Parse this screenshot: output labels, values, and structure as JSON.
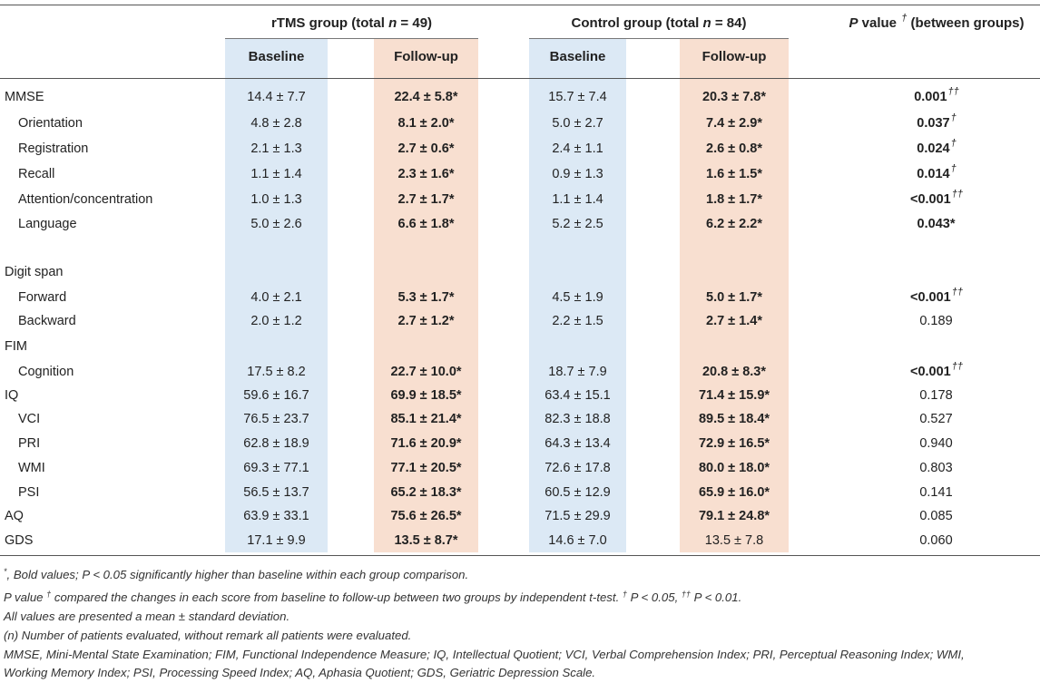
{
  "header": {
    "rtms_group_prefix": "rTMS group (total ",
    "rtms_group_n": "n",
    "rtms_group_suffix": " = 49)",
    "control_group_prefix": "Control group (total ",
    "control_group_n": "n",
    "control_group_suffix": " = 84)",
    "pvalue_p": "P",
    "pvalue_word": " value ",
    "pvalue_dagger": "†",
    "pvalue_suffix": " (between groups)",
    "baseline_label": "Baseline",
    "followup_label": "Follow-up"
  },
  "rows": [
    {
      "label": "MMSE",
      "indent": false,
      "rtms_base": "14.4 ± 7.7",
      "rtms_fu": "22.4 ± 5.8*",
      "rtms_fu_bold": true,
      "ctrl_base": "15.7 ± 7.4",
      "ctrl_fu": "20.3 ± 7.8*",
      "ctrl_fu_bold": true,
      "p": "0.001",
      "p_bold": true,
      "p_sup": "††"
    },
    {
      "label": "Orientation",
      "indent": true,
      "rtms_base": "4.8 ± 2.8",
      "rtms_fu": "8.1 ± 2.0*",
      "rtms_fu_bold": true,
      "ctrl_base": "5.0 ± 2.7",
      "ctrl_fu": "7.4 ± 2.9*",
      "ctrl_fu_bold": true,
      "p": "0.037",
      "p_bold": true,
      "p_sup": "†"
    },
    {
      "label": "Registration",
      "indent": true,
      "rtms_base": "2.1 ± 1.3",
      "rtms_fu": "2.7 ± 0.6*",
      "rtms_fu_bold": true,
      "ctrl_base": "2.4 ± 1.1",
      "ctrl_fu": "2.6 ± 0.8*",
      "ctrl_fu_bold": true,
      "p": "0.024",
      "p_bold": true,
      "p_sup": "†"
    },
    {
      "label": "Recall",
      "indent": true,
      "rtms_base": "1.1 ± 1.4",
      "rtms_fu": "2.3 ± 1.6*",
      "rtms_fu_bold": true,
      "ctrl_base": "0.9 ± 1.3",
      "ctrl_fu": "1.6 ± 1.5*",
      "ctrl_fu_bold": true,
      "p": "0.014",
      "p_bold": true,
      "p_sup": "†"
    },
    {
      "label": "Attention/concentration",
      "indent": true,
      "rtms_base": "1.0 ± 1.3",
      "rtms_fu": "2.7 ± 1.7*",
      "rtms_fu_bold": true,
      "ctrl_base": "1.1 ± 1.4",
      "ctrl_fu": "1.8 ± 1.7*",
      "ctrl_fu_bold": true,
      "p": "<0.001",
      "p_bold": true,
      "p_sup": "††"
    },
    {
      "label": "Language",
      "indent": true,
      "rtms_base": "5.0 ± 2.6",
      "rtms_fu": "6.6 ± 1.8*",
      "rtms_fu_bold": true,
      "ctrl_base": "5.2 ± 2.5",
      "ctrl_fu": "6.2 ± 2.2*",
      "ctrl_fu_bold": true,
      "p": "0.043*",
      "p_bold": true,
      "p_sup": ""
    },
    {
      "label": "Digit span",
      "indent": false,
      "rtms_base": "",
      "rtms_fu": "",
      "rtms_fu_bold": false,
      "ctrl_base": "",
      "ctrl_fu": "",
      "ctrl_fu_bold": false,
      "p": "",
      "p_bold": false,
      "p_sup": ""
    },
    {
      "label": "Forward",
      "indent": true,
      "rtms_base": "4.0 ± 2.1",
      "rtms_fu": "5.3 ± 1.7*",
      "rtms_fu_bold": true,
      "ctrl_base": "4.5 ± 1.9",
      "ctrl_fu": "5.0 ± 1.7*",
      "ctrl_fu_bold": true,
      "p": "<0.001",
      "p_bold": true,
      "p_sup": "††"
    },
    {
      "label": "Backward",
      "indent": true,
      "rtms_base": "2.0 ± 1.2",
      "rtms_fu": "2.7 ± 1.2*",
      "rtms_fu_bold": true,
      "ctrl_base": "2.2 ± 1.5",
      "ctrl_fu": "2.7 ± 1.4*",
      "ctrl_fu_bold": true,
      "p": "0.189",
      "p_bold": false,
      "p_sup": ""
    },
    {
      "label": "FIM",
      "indent": false,
      "rtms_base": "",
      "rtms_fu": "",
      "rtms_fu_bold": false,
      "ctrl_base": "",
      "ctrl_fu": "",
      "ctrl_fu_bold": false,
      "p": "",
      "p_bold": false,
      "p_sup": ""
    },
    {
      "label": "Cognition",
      "indent": true,
      "rtms_base": "17.5 ± 8.2",
      "rtms_fu": "22.7 ± 10.0*",
      "rtms_fu_bold": true,
      "ctrl_base": "18.7 ± 7.9",
      "ctrl_fu": "20.8 ± 8.3*",
      "ctrl_fu_bold": true,
      "p": "<0.001",
      "p_bold": true,
      "p_sup": "††"
    },
    {
      "label": "IQ",
      "indent": false,
      "rtms_base": "59.6 ± 16.7",
      "rtms_fu": "69.9 ± 18.5*",
      "rtms_fu_bold": true,
      "ctrl_base": "63.4 ± 15.1",
      "ctrl_fu": "71.4 ± 15.9*",
      "ctrl_fu_bold": true,
      "p": "0.178",
      "p_bold": false,
      "p_sup": ""
    },
    {
      "label": "VCI",
      "indent": true,
      "rtms_base": "76.5 ± 23.7",
      "rtms_fu": "85.1 ± 21.4*",
      "rtms_fu_bold": true,
      "ctrl_base": "82.3 ± 18.8",
      "ctrl_fu": "89.5 ± 18.4*",
      "ctrl_fu_bold": true,
      "p": "0.527",
      "p_bold": false,
      "p_sup": ""
    },
    {
      "label": "PRI",
      "indent": true,
      "rtms_base": "62.8 ± 18.9",
      "rtms_fu": "71.6 ± 20.9*",
      "rtms_fu_bold": true,
      "ctrl_base": "64.3 ± 13.4",
      "ctrl_fu": "72.9 ± 16.5*",
      "ctrl_fu_bold": true,
      "p": "0.940",
      "p_bold": false,
      "p_sup": ""
    },
    {
      "label": "WMI",
      "indent": true,
      "rtms_base": "69.3 ± 77.1",
      "rtms_fu": "77.1 ± 20.5*",
      "rtms_fu_bold": true,
      "ctrl_base": "72.6 ± 17.8",
      "ctrl_fu": "80.0 ± 18.0*",
      "ctrl_fu_bold": true,
      "p": "0.803",
      "p_bold": false,
      "p_sup": ""
    },
    {
      "label": "PSI",
      "indent": true,
      "rtms_base": "56.5 ± 13.7",
      "rtms_fu": "65.2 ± 18.3*",
      "rtms_fu_bold": true,
      "ctrl_base": "60.5 ± 12.9",
      "ctrl_fu": "65.9 ± 16.0*",
      "ctrl_fu_bold": true,
      "p": "0.141",
      "p_bold": false,
      "p_sup": ""
    },
    {
      "label": "AQ",
      "indent": false,
      "rtms_base": "63.9 ± 33.1",
      "rtms_fu": "75.6 ± 26.5*",
      "rtms_fu_bold": true,
      "ctrl_base": "71.5 ± 29.9",
      "ctrl_fu": "79.1 ± 24.8*",
      "ctrl_fu_bold": true,
      "p": "0.085",
      "p_bold": false,
      "p_sup": ""
    },
    {
      "label": "GDS",
      "indent": false,
      "rtms_base": "17.1 ± 9.9",
      "rtms_fu": "13.5 ± 8.7*",
      "rtms_fu_bold": true,
      "ctrl_base": "14.6 ± 7.0",
      "ctrl_fu": "13.5 ± 7.8",
      "ctrl_fu_bold": false,
      "p": "0.060",
      "p_bold": false,
      "p_sup": ""
    }
  ],
  "footnotes": {
    "f1_star": "*",
    "f1_text": ", Bold values; P < 0.05 significantly higher than baseline within each group comparison.",
    "f2_a": "P value ",
    "f2_dagger": "†",
    "f2_b": " compared the changes in each score from baseline to follow-up between two groups by independent t-test. ",
    "f2_dagger2": "†",
    "f2_c": " P < 0.05, ",
    "f2_dagger3": "††",
    "f2_d": " P < 0.01.",
    "f3": "All values are presented a mean ± standard deviation.",
    "f4": "(n) Number of patients evaluated, without remark all patients were evaluated.",
    "f5": "MMSE, Mini-Mental State Examination; FIM, Functional Independence Measure; IQ, Intellectual Quotient; VCI, Verbal Comprehension Index; PRI, Perceptual Reasoning Index; WMI,",
    "f6": "Working Memory Index; PSI, Processing Speed Index; AQ, Aphasia Quotient; GDS, Geriatric Depression Scale."
  }
}
